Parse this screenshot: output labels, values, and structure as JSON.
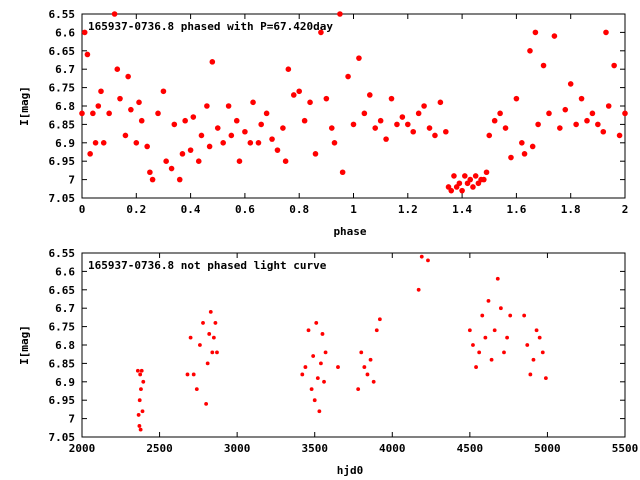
{
  "chart_data": [
    {
      "type": "scatter",
      "title": "165937-0736.8 phased with P=67.420day",
      "xlabel": "phase",
      "ylabel": "I[mag]",
      "xlim": [
        0,
        2
      ],
      "ylim": [
        6.55,
        7.05
      ],
      "y_inverted": true,
      "grid": false,
      "marker_color": "#ff0000",
      "xticks": [
        "0",
        "0.2",
        "0.4",
        "0.6",
        "0.8",
        "1",
        "1.2",
        "1.4",
        "1.6",
        "1.8",
        "2"
      ],
      "yticks": [
        "6.55",
        "6.6",
        "6.65",
        "6.7",
        "6.75",
        "6.8",
        "6.85",
        "6.9",
        "6.95",
        "7",
        "7.05"
      ],
      "x": [
        0.0,
        0.01,
        0.02,
        0.03,
        0.04,
        0.05,
        0.06,
        0.07,
        0.08,
        0.1,
        0.12,
        0.13,
        0.14,
        0.16,
        0.17,
        0.18,
        0.2,
        0.21,
        0.22,
        0.24,
        0.25,
        0.26,
        0.28,
        0.3,
        0.31,
        0.33,
        0.34,
        0.36,
        0.37,
        0.38,
        0.4,
        0.41,
        0.43,
        0.44,
        0.46,
        0.47,
        0.48,
        0.5,
        0.52,
        0.54,
        0.55,
        0.57,
        0.58,
        0.6,
        0.62,
        0.63,
        0.65,
        0.66,
        0.68,
        0.7,
        0.72,
        0.74,
        0.75,
        0.76,
        0.78,
        0.8,
        0.82,
        0.84,
        0.86,
        0.88,
        0.9,
        0.92,
        0.93,
        0.95,
        0.96,
        0.98,
        1.0,
        1.02,
        1.04,
        1.06,
        1.08,
        1.1,
        1.12,
        1.14,
        1.16,
        1.18,
        1.2,
        1.22,
        1.24,
        1.26,
        1.28,
        1.3,
        1.32,
        1.34,
        1.35,
        1.36,
        1.37,
        1.38,
        1.39,
        1.4,
        1.41,
        1.42,
        1.43,
        1.44,
        1.45,
        1.46,
        1.47,
        1.48,
        1.49,
        1.5,
        1.52,
        1.54,
        1.56,
        1.58,
        1.6,
        1.62,
        1.63,
        1.65,
        1.66,
        1.67,
        1.68,
        1.7,
        1.72,
        1.74,
        1.76,
        1.78,
        1.8,
        1.82,
        1.84,
        1.86,
        1.88,
        1.9,
        1.92,
        1.93,
        1.94,
        1.96,
        1.98,
        2.0
      ],
      "y": [
        6.82,
        6.6,
        6.66,
        6.93,
        6.82,
        6.9,
        6.8,
        6.76,
        6.9,
        6.82,
        6.55,
        6.7,
        6.78,
        6.88,
        6.72,
        6.81,
        6.9,
        6.79,
        6.84,
        6.91,
        6.98,
        7.0,
        6.82,
        6.76,
        6.95,
        6.97,
        6.85,
        7.0,
        6.93,
        6.84,
        6.92,
        6.83,
        6.95,
        6.88,
        6.8,
        6.91,
        6.68,
        6.86,
        6.9,
        6.8,
        6.88,
        6.84,
        6.95,
        6.87,
        6.9,
        6.79,
        6.9,
        6.85,
        6.82,
        6.89,
        6.92,
        6.86,
        6.95,
        6.7,
        6.77,
        6.76,
        6.84,
        6.79,
        6.93,
        6.6,
        6.78,
        6.86,
        6.9,
        6.55,
        6.98,
        6.72,
        6.85,
        6.67,
        6.82,
        6.77,
        6.86,
        6.84,
        6.89,
        6.78,
        6.85,
        6.83,
        6.85,
        6.87,
        6.82,
        6.8,
        6.86,
        6.88,
        6.79,
        6.87,
        7.02,
        7.03,
        6.99,
        7.02,
        7.01,
        7.03,
        6.99,
        7.01,
        7.0,
        7.02,
        6.99,
        7.01,
        7.0,
        7.0,
        6.98,
        6.88,
        6.84,
        6.82,
        6.86,
        6.94,
        6.78,
        6.9,
        6.93,
        6.65,
        6.91,
        6.6,
        6.85,
        6.69,
        6.82,
        6.61,
        6.86,
        6.81,
        6.74,
        6.85,
        6.78,
        6.84,
        6.82,
        6.85,
        6.87,
        6.6,
        6.8,
        6.69,
        6.88,
        6.82
      ]
    },
    {
      "type": "scatter",
      "title": "165937-0736.8 not phased light curve",
      "xlabel": "hjd0",
      "ylabel": "I[mag]",
      "xlim": [
        2000,
        5500
      ],
      "ylim": [
        6.55,
        7.05
      ],
      "y_inverted": true,
      "grid": false,
      "marker_color": "#ff0000",
      "xticks": [
        "2000",
        "2500",
        "3000",
        "3500",
        "4000",
        "4500",
        "5000",
        "5500"
      ],
      "yticks": [
        "6.55",
        "6.6",
        "6.65",
        "6.7",
        "6.75",
        "6.8",
        "6.85",
        "6.9",
        "6.95",
        "7",
        "7.05"
      ],
      "x": [
        2360,
        2365,
        2370,
        2372,
        2375,
        2378,
        2380,
        2385,
        2390,
        2395,
        2680,
        2700,
        2720,
        2740,
        2760,
        2780,
        2800,
        2810,
        2820,
        2830,
        2840,
        2850,
        2860,
        2870,
        3420,
        3440,
        3460,
        3480,
        3490,
        3500,
        3510,
        3520,
        3530,
        3540,
        3550,
        3560,
        3570,
        3650,
        3780,
        3800,
        3820,
        3840,
        3860,
        3880,
        3900,
        3920,
        4170,
        4190,
        4230,
        4500,
        4520,
        4540,
        4560,
        4580,
        4600,
        4620,
        4640,
        4660,
        4680,
        4700,
        4720,
        4740,
        4760,
        4850,
        4870,
        4890,
        4910,
        4930,
        4950,
        4970,
        4990
      ],
      "y": [
        6.87,
        6.99,
        7.02,
        6.95,
        6.88,
        7.03,
        6.92,
        6.87,
        6.98,
        6.9,
        6.88,
        6.78,
        6.88,
        6.92,
        6.8,
        6.74,
        6.96,
        6.85,
        6.77,
        6.71,
        6.82,
        6.78,
        6.74,
        6.82,
        6.88,
        6.86,
        6.76,
        6.92,
        6.83,
        6.95,
        6.74,
        6.89,
        6.98,
        6.85,
        6.77,
        6.9,
        6.82,
        6.86,
        6.92,
        6.82,
        6.86,
        6.88,
        6.84,
        6.9,
        6.76,
        6.73,
        6.65,
        6.56,
        6.57,
        6.76,
        6.8,
        6.86,
        6.82,
        6.72,
        6.78,
        6.68,
        6.84,
        6.76,
        6.62,
        6.7,
        6.82,
        6.78,
        6.72,
        6.72,
        6.8,
        6.88,
        6.84,
        6.76,
        6.78,
        6.82,
        6.89
      ]
    }
  ]
}
